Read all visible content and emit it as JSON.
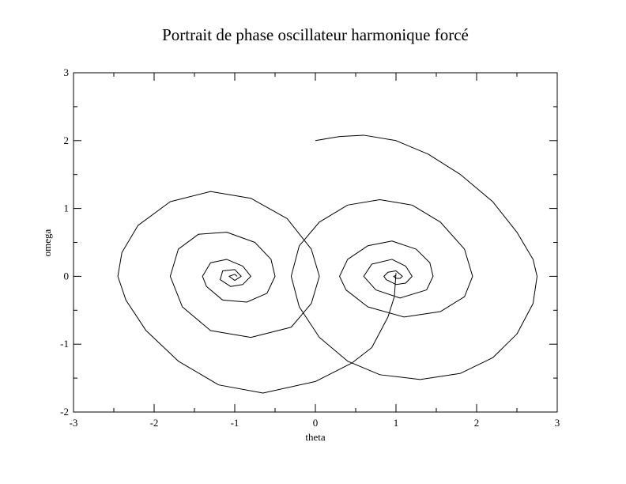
{
  "chart_data": {
    "type": "line",
    "title": "Portrait de phase oscillateur harmonique forcé",
    "xlabel": "theta",
    "ylabel": "omega",
    "color": "#000000",
    "xlim": [
      -3,
      3
    ],
    "ylim": [
      -2,
      3
    ],
    "xticks": [
      -3,
      -2,
      -1,
      0,
      1,
      2,
      3
    ],
    "yticks": [
      -2,
      -1,
      0,
      1,
      2,
      3
    ],
    "xminorticks": [
      -2.5,
      -1.5,
      -0.5,
      0.5,
      1.5,
      2.5
    ],
    "yminorticks": [
      -1.5,
      -0.5,
      0.5,
      1.5,
      2.5
    ],
    "x": [
      0,
      0.3,
      0.6,
      1.0,
      1.4,
      1.8,
      2.2,
      2.5,
      2.7,
      2.75,
      2.7,
      2.5,
      2.2,
      1.8,
      1.3,
      0.8,
      0.4,
      0.05,
      -0.2,
      -0.3,
      -0.2,
      0.05,
      0.4,
      0.8,
      1.2,
      1.55,
      1.85,
      1.95,
      1.85,
      1.55,
      1.1,
      0.65,
      0.38,
      0.3,
      0.4,
      0.65,
      0.95,
      1.25,
      1.42,
      1.46,
      1.38,
      1.05,
      0.75,
      0.6,
      0.7,
      0.95,
      1.12,
      1.2,
      1.12,
      1.0,
      0.88,
      0.85,
      0.9,
      1.0,
      1.08,
      1.05,
      1.0,
      0.97,
      1.0,
      null,
      1.0,
      0.98,
      0.9,
      0.7,
      0.45,
      0.0,
      -0.65,
      -1.2,
      -1.7,
      -2.1,
      -2.35,
      -2.45,
      -2.4,
      -2.2,
      -1.8,
      -1.3,
      -0.8,
      -0.35,
      -0.05,
      0.05,
      -0.05,
      -0.3,
      -0.8,
      -1.3,
      -1.65,
      -1.8,
      -1.7,
      -1.45,
      -1.1,
      -0.75,
      -0.55,
      -0.5,
      -0.6,
      -0.85,
      -1.15,
      -1.35,
      -1.4,
      -1.3,
      -1.1,
      -0.9,
      -0.8,
      -0.9,
      -1.05,
      -1.18,
      -1.15,
      -1.0,
      -0.92,
      -1.0,
      -1.07,
      -1.0,
      -0.97
    ],
    "values": [
      2.0,
      2.06,
      2.08,
      2.0,
      1.8,
      1.5,
      1.1,
      0.65,
      0.25,
      0,
      -0.4,
      -0.85,
      -1.2,
      -1.43,
      -1.52,
      -1.45,
      -1.25,
      -0.9,
      -0.45,
      0,
      0.45,
      0.8,
      1.05,
      1.13,
      1.05,
      0.8,
      0.4,
      0,
      -0.3,
      -0.52,
      -0.6,
      -0.45,
      -0.2,
      0,
      0.25,
      0.45,
      0.52,
      0.4,
      0.2,
      0,
      -0.2,
      -0.32,
      -0.2,
      0,
      0.18,
      0.25,
      0.15,
      0,
      -0.1,
      -0.12,
      -0.05,
      0,
      0.06,
      0.08,
      0,
      -0.03,
      -0.03,
      0,
      0.01,
      null,
      0.05,
      -0.3,
      -0.6,
      -1.05,
      -1.28,
      -1.55,
      -1.72,
      -1.6,
      -1.25,
      -0.8,
      -0.35,
      0,
      0.35,
      0.75,
      1.1,
      1.25,
      1.15,
      0.85,
      0.4,
      0,
      -0.4,
      -0.75,
      -0.9,
      -0.8,
      -0.45,
      0,
      0.4,
      0.62,
      0.65,
      0.5,
      0.25,
      0,
      -0.25,
      -0.38,
      -0.35,
      -0.15,
      0,
      0.2,
      0.25,
      0.15,
      0,
      -0.12,
      -0.15,
      -0.05,
      0.08,
      0.1,
      0,
      -0.06,
      0,
      0.03,
      0
    ]
  }
}
